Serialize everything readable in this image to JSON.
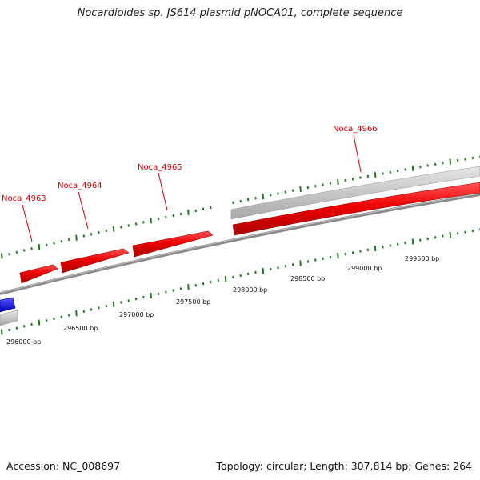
{
  "title": "Nocardioides sp. JS614 plasmid pNOCA01, complete sequence",
  "colors": {
    "gene": "#ff0000",
    "gene_dark": "#cc0000",
    "gene_other": "#2222ff",
    "label": "#cc0000",
    "tick": "#227722",
    "backbone": "#808080",
    "track": "#c8c8c8"
  },
  "genes": [
    {
      "label": "Noca_4963"
    },
    {
      "label": "Noca_4964"
    },
    {
      "label": "Noca_4965"
    },
    {
      "label": "Noca_4966"
    }
  ],
  "scale_ticks": [
    {
      "label": "296000 bp"
    },
    {
      "label": "296500 bp"
    },
    {
      "label": "297000 bp"
    },
    {
      "label": "297500 bp"
    },
    {
      "label": "298000 bp"
    },
    {
      "label": "298500 bp"
    },
    {
      "label": "299000 bp"
    },
    {
      "label": "299500 bp"
    }
  ],
  "footer": {
    "accession": "Accession: NC_008697",
    "summary": "Topology: circular; Length: 307,814 bp; Genes: 264"
  }
}
